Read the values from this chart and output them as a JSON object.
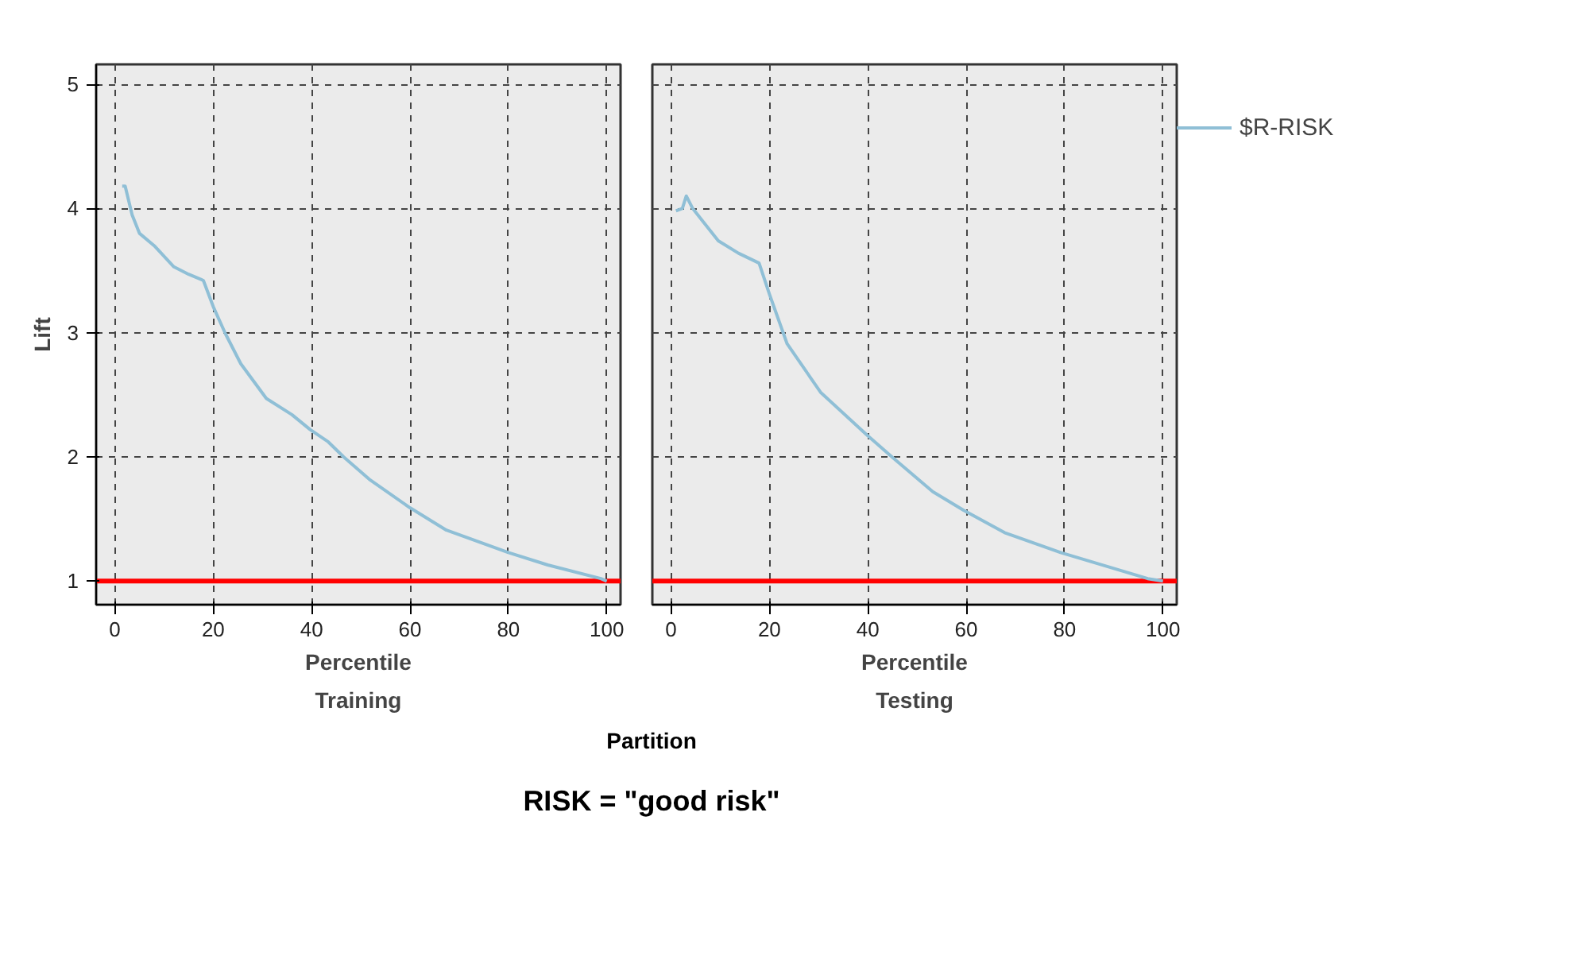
{
  "chart_data": [
    {
      "type": "line",
      "xlabel": "Percentile",
      "subtitle": "Training",
      "ylabel": "Lift",
      "xlim": [
        -3.8,
        102.8
      ],
      "ylim": [
        0.81,
        5.16
      ],
      "xticks": [
        0,
        20,
        40,
        60,
        80,
        100
      ],
      "yticks": [
        1,
        2,
        3,
        4,
        5
      ],
      "grid": true,
      "legend": false,
      "line_style": "solid",
      "series": [
        {
          "x": [
            1.5,
            2.1,
            3.5,
            5,
            8,
            12,
            15,
            18,
            20,
            22.5,
            25.6,
            30.8,
            36,
            39.7,
            43.4,
            46.5,
            51.7,
            60,
            67.4,
            80,
            88,
            98.8,
            100
          ],
          "values": [
            4.18,
            4.18,
            3.95,
            3.8,
            3.7,
            3.53,
            3.47,
            3.42,
            3.21,
            2.99,
            2.75,
            2.47,
            2.34,
            2.22,
            2.12,
            2.0,
            1.82,
            1.59,
            1.41,
            1.23,
            1.13,
            1.02,
            1.0
          ],
          "color": "#8fbfd6"
        }
      ],
      "ref_lines": [
        {
          "axis": "y",
          "value": 1,
          "color": "#ff0000"
        }
      ],
      "annotations": [
        "Partition",
        "RISK = \"good risk\""
      ]
    },
    {
      "type": "line",
      "xlabel": "Percentile",
      "subtitle": "Testing",
      "xlim": [
        -3.8,
        102.8
      ],
      "ylim": [
        0.81,
        5.16
      ],
      "xticks": [
        0,
        20,
        40,
        60,
        80,
        100
      ],
      "yticks": [
        1,
        2,
        3,
        4,
        5
      ],
      "grid": true,
      "legend": "right",
      "tick_labels": "x",
      "line_style": "solid",
      "series": [
        {
          "name": "$R-RISK",
          "x": [
            1.0,
            2.3,
            3.1,
            4.4,
            6.4,
            9.6,
            13.7,
            17.9,
            20,
            23.6,
            30.4,
            39.7,
            44.9,
            53.2,
            59.5,
            67.8,
            79.2,
            96.9,
            100
          ],
          "values": [
            3.98,
            4.0,
            4.1,
            4.0,
            3.9,
            3.74,
            3.64,
            3.56,
            3.31,
            2.91,
            2.52,
            2.18,
            2.0,
            1.72,
            1.57,
            1.39,
            1.23,
            1.02,
            1.0
          ],
          "color": "#8fbfd6"
        }
      ],
      "ref_lines": [
        {
          "axis": "y",
          "value": 1,
          "color": "#ff0000"
        }
      ]
    }
  ]
}
